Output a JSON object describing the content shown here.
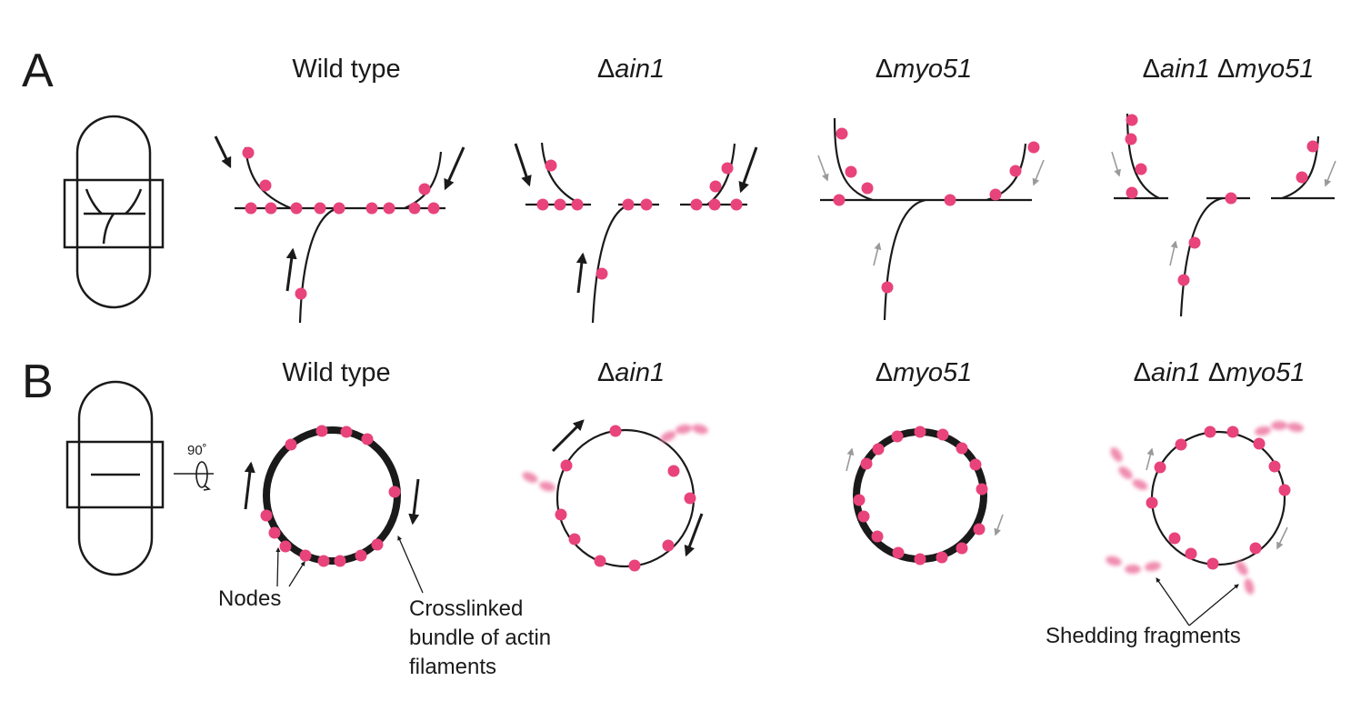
{
  "panels": {
    "a": {
      "letter": "A",
      "titles": {
        "wild_type": "Wild type",
        "ain1": "ain1",
        "myo51": "myo51",
        "double_1": "ain1",
        "double_2": "myo51"
      }
    },
    "b": {
      "letter": "B",
      "titles": {
        "wild_type": "Wild type",
        "ain1": "ain1",
        "myo51": "myo51",
        "double_1": "ain1",
        "double_2": "myo51"
      },
      "rotation_label": "90˚",
      "labels": {
        "nodes": "Nodes",
        "bundle_line1": "Crosslinked",
        "bundle_line2": "bundle of actin",
        "bundle_line3": "filaments",
        "shedding": "Shedding fragments"
      }
    }
  },
  "delta_symbol": "Δ",
  "colors": {
    "node": "#e8437a",
    "fragment": "#f08db0",
    "line": "#1a1a1a",
    "weak_arrow": "#9a9a9a"
  }
}
